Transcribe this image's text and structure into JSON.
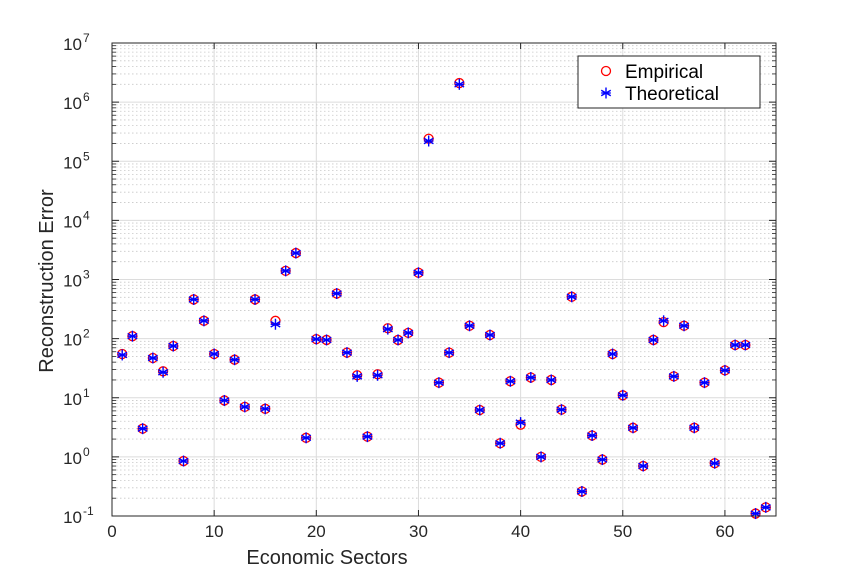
{
  "chart_data": {
    "type": "scatter",
    "xlabel": "Economic Sectors",
    "ylabel": "Reconstruction Error",
    "xlim": [
      0,
      65
    ],
    "ylim": [
      0.1,
      10000000
    ],
    "yscale": "log",
    "x_ticks": [
      0,
      10,
      20,
      30,
      40,
      50,
      60
    ],
    "y_ticks": [
      {
        "value": 0.1,
        "base": "10",
        "exp": "-1"
      },
      {
        "value": 1,
        "base": "10",
        "exp": "0"
      },
      {
        "value": 10,
        "base": "10",
        "exp": "1"
      },
      {
        "value": 100,
        "base": "10",
        "exp": "2"
      },
      {
        "value": 1000,
        "base": "10",
        "exp": "3"
      },
      {
        "value": 10000,
        "base": "10",
        "exp": "4"
      },
      {
        "value": 100000,
        "base": "10",
        "exp": "5"
      },
      {
        "value": 1000000,
        "base": "10",
        "exp": "6"
      },
      {
        "value": 10000000,
        "base": "10",
        "exp": "7"
      }
    ],
    "grid": true,
    "legend_position": "top-right",
    "colors": {
      "empirical": "#ff0000",
      "theoretical": "#0000ff"
    },
    "series": [
      {
        "name": "Empirical",
        "marker": "circle",
        "x": [
          1,
          2,
          3,
          4,
          5,
          6,
          7,
          8,
          9,
          10,
          11,
          12,
          13,
          14,
          15,
          16,
          17,
          18,
          19,
          20,
          21,
          22,
          23,
          24,
          25,
          26,
          27,
          28,
          29,
          30,
          31,
          32,
          33,
          34,
          35,
          36,
          37,
          38,
          39,
          40,
          41,
          42,
          43,
          44,
          45,
          46,
          47,
          48,
          49,
          50,
          51,
          52,
          53,
          54,
          55,
          56,
          57,
          58,
          59,
          60,
          61,
          62,
          63,
          64
        ],
        "y": [
          55,
          110,
          3,
          47,
          28,
          75,
          0.85,
          460,
          200,
          55,
          9,
          44,
          7,
          460,
          6.5,
          200,
          1400,
          2800,
          2.1,
          98,
          95,
          580,
          58,
          24,
          2.2,
          25,
          150,
          95,
          125,
          1300,
          240000,
          18,
          58,
          2100000,
          165,
          6.2,
          115,
          1.7,
          19,
          3.5,
          22,
          1,
          20,
          6.3,
          510,
          0.26,
          2.3,
          0.9,
          55,
          11,
          3.1,
          0.7,
          95,
          190,
          23,
          165,
          3.1,
          18,
          0.78,
          29,
          78,
          78,
          0.11,
          0.14
        ]
      },
      {
        "name": "Theoretical",
        "marker": "asterisk",
        "x": [
          1,
          2,
          3,
          4,
          5,
          6,
          7,
          8,
          9,
          10,
          11,
          12,
          13,
          14,
          15,
          16,
          17,
          18,
          19,
          20,
          21,
          22,
          23,
          24,
          25,
          26,
          27,
          28,
          29,
          30,
          31,
          32,
          33,
          34,
          35,
          36,
          37,
          38,
          39,
          40,
          41,
          42,
          43,
          44,
          45,
          46,
          47,
          48,
          49,
          50,
          51,
          52,
          53,
          54,
          55,
          56,
          57,
          58,
          59,
          60,
          61,
          62,
          63,
          64
        ],
        "y": [
          53,
          110,
          3,
          47,
          27,
          75,
          0.85,
          460,
          200,
          55,
          9,
          44,
          7,
          460,
          6.5,
          175,
          1400,
          2800,
          2.1,
          98,
          95,
          580,
          58,
          23,
          2.2,
          24,
          145,
          95,
          125,
          1300,
          220000,
          18,
          58,
          2000000,
          165,
          6.2,
          115,
          1.7,
          19,
          3.8,
          22,
          1,
          20,
          6.3,
          510,
          0.26,
          2.3,
          0.9,
          55,
          11,
          3.1,
          0.7,
          95,
          200,
          23,
          165,
          3.1,
          18,
          0.78,
          29,
          78,
          78,
          0.11,
          0.14
        ]
      }
    ]
  }
}
